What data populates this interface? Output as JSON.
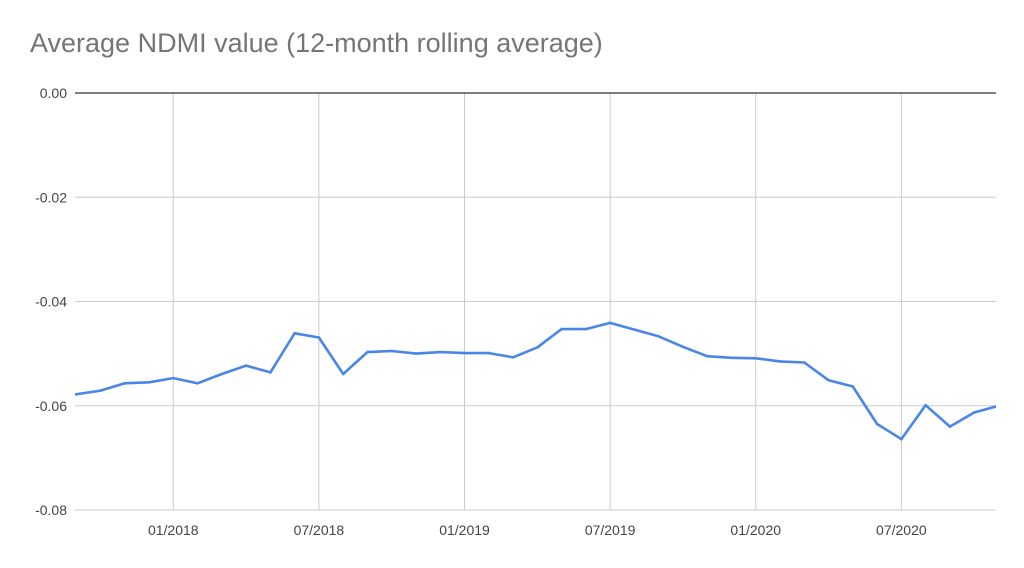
{
  "chart_data": {
    "type": "line",
    "title": "Average NDMI value (12-month rolling average)",
    "xlabel": "",
    "ylabel": "",
    "xlim": [
      "2017-09",
      "2020-11"
    ],
    "ylim": [
      -0.08,
      0.0
    ],
    "y_ticks": [
      0.0,
      -0.02,
      -0.04,
      -0.06,
      -0.08
    ],
    "y_tick_labels": [
      "0.00",
      "-0.02",
      "-0.04",
      "-0.06",
      "-0.08"
    ],
    "x_ticks": [
      "2018-01",
      "2018-07",
      "2019-01",
      "2019-07",
      "2020-01",
      "2020-07"
    ],
    "x_tick_labels": [
      "01/2018",
      "07/2018",
      "01/2019",
      "07/2019",
      "01/2020",
      "07/2020"
    ],
    "grid": true,
    "legend": "none",
    "color": "#4a86e8",
    "series": [
      {
        "x": [
          "2017-09",
          "2017-10",
          "2017-11",
          "2017-12",
          "2018-01",
          "2018-02",
          "2018-03",
          "2018-04",
          "2018-05",
          "2018-06",
          "2018-07",
          "2018-08",
          "2018-09",
          "2018-10",
          "2018-11",
          "2018-12",
          "2019-01",
          "2019-02",
          "2019-03",
          "2019-04",
          "2019-05",
          "2019-06",
          "2019-07",
          "2019-08",
          "2019-09",
          "2019-10",
          "2019-11",
          "2019-12",
          "2020-01",
          "2020-02",
          "2020-03",
          "2020-04",
          "2020-05",
          "2020-06",
          "2020-07",
          "2020-08",
          "2020-09",
          "2020-10",
          "2020-11"
        ],
        "values": [
          -0.0578,
          -0.0571,
          -0.0557,
          -0.0555,
          -0.0547,
          -0.0557,
          -0.0539,
          -0.0523,
          -0.0536,
          -0.0461,
          -0.0469,
          -0.0539,
          -0.0497,
          -0.0495,
          -0.05,
          -0.0497,
          -0.0499,
          -0.0499,
          -0.0507,
          -0.0488,
          -0.0453,
          -0.0453,
          -0.0441,
          -0.0454,
          -0.0467,
          -0.0487,
          -0.0505,
          -0.0508,
          -0.0509,
          -0.0515,
          -0.0517,
          -0.0551,
          -0.0563,
          -0.0635,
          -0.0664,
          -0.0599,
          -0.064,
          -0.0613,
          -0.06
        ]
      }
    ]
  }
}
